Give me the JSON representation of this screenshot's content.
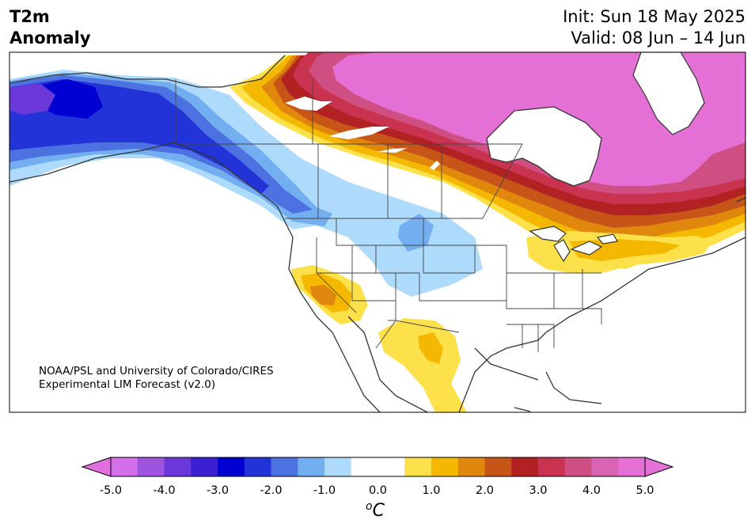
{
  "header": {
    "variable_line1": "T2m",
    "variable_line2": "Anomaly",
    "init": "Init: Sun 18 May 2025",
    "valid": "Valid: 08 Jun – 14 Jun"
  },
  "credit": {
    "line1": "NOAA/PSL and University of Colorado/CIRES",
    "line2": "Experimental LIM Forecast (v2.0)"
  },
  "colorbar": {
    "unit_base": "C",
    "unit_sup": "o",
    "ticks": [
      "-5.0",
      "-4.0",
      "-3.0",
      "-2.0",
      "-1.0",
      "0.0",
      "1.0",
      "2.0",
      "3.0",
      "4.0",
      "5.0"
    ],
    "colors": [
      "#d36fe8",
      "#9d55e0",
      "#6b39da",
      "#3a1fd3",
      "#0000d0",
      "#2233d8",
      "#4b72e0",
      "#73aef1",
      "#aedbfb",
      "#ffffff",
      "#ffffff",
      "#fde14a",
      "#f5b800",
      "#e0870e",
      "#c85518",
      "#b22222",
      "#c93350",
      "#d04f82",
      "#d864b3",
      "#e470d6"
    ],
    "under_color": "#e070e0",
    "over_color": "#e570d8"
  },
  "map": {
    "colors": {
      "ocean": "#ffffff",
      "coast": "#333333",
      "cold_1": "#aedbfb",
      "cold_2": "#73aef1",
      "cold_3": "#4b72e0",
      "cold_4": "#2233d8",
      "cold_5": "#0000d0",
      "cold_6": "#6b39da",
      "warm_1": "#fde14a",
      "warm_2": "#f5b800",
      "warm_3": "#e0870e",
      "warm_4": "#c85518",
      "warm_5": "#b22222",
      "warm_6": "#c93350",
      "warm_7": "#d04f82",
      "warm_8": "#e470d6"
    }
  }
}
